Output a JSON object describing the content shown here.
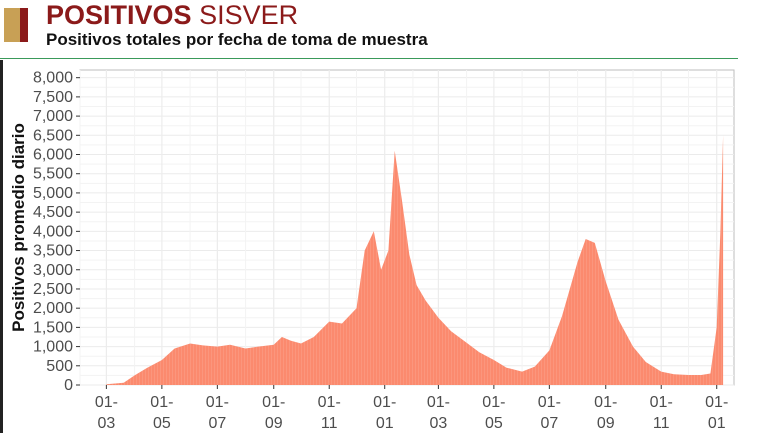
{
  "header": {
    "title_bold": "POSITIVOS",
    "title_light": "SISVER",
    "subtitle": "Positivos totales por fecha de toma de muestra"
  },
  "colors": {
    "title": "#8b1a1a",
    "gold": "#c8a055",
    "red": "#8b1a1a",
    "rule": "#3a9a5a",
    "area": "#fb8a6e",
    "area_light": "#fcae98",
    "grid": "#ebebeb"
  },
  "chart_data": {
    "type": "area",
    "title": "",
    "xlabel": "",
    "ylabel": "Positivos promedio diario",
    "ylim": [
      0,
      8200
    ],
    "yticks": [
      0,
      500,
      1000,
      1500,
      2000,
      2500,
      3000,
      3500,
      4000,
      4500,
      5000,
      5500,
      6000,
      6500,
      7000,
      7500,
      8000
    ],
    "ytick_labels": [
      "0",
      "500",
      "1,000",
      "1,500",
      "2,000",
      "2,500",
      "3,000",
      "3,500",
      "4,000",
      "4,500",
      "5,000",
      "5,500",
      "6,000",
      "6,500",
      "7,000",
      "7,500",
      "8,000"
    ],
    "xlim": [
      "2020-02-01",
      "2022-01-20"
    ],
    "xticks": [
      "2020-03-01",
      "2020-05-01",
      "2020-07-01",
      "2020-09-01",
      "2020-11-01",
      "2021-01-01",
      "2021-03-01",
      "2021-05-01",
      "2021-07-01",
      "2021-09-01",
      "2021-11-01",
      "2022-01-01"
    ],
    "xtick_labels": [
      [
        "01-",
        "03"
      ],
      [
        "01-",
        "05"
      ],
      [
        "01-",
        "07"
      ],
      [
        "01-",
        "09"
      ],
      [
        "01-",
        "11"
      ],
      [
        "01-",
        "01"
      ],
      [
        "01-",
        "03"
      ],
      [
        "01-",
        "05"
      ],
      [
        "01-",
        "07"
      ],
      [
        "01-",
        "09"
      ],
      [
        "01-",
        "11"
      ],
      [
        "01-",
        "01"
      ]
    ],
    "grid": true,
    "legend": "none",
    "x": [
      "2020-03-01",
      "2020-03-20",
      "2020-04-01",
      "2020-04-15",
      "2020-05-01",
      "2020-05-15",
      "2020-06-01",
      "2020-06-15",
      "2020-07-01",
      "2020-07-15",
      "2020-08-01",
      "2020-08-15",
      "2020-09-01",
      "2020-09-10",
      "2020-09-20",
      "2020-10-01",
      "2020-10-15",
      "2020-11-01",
      "2020-11-15",
      "2020-12-01",
      "2020-12-10",
      "2020-12-20",
      "2020-12-28",
      "2021-01-05",
      "2021-01-12",
      "2021-01-20",
      "2021-01-28",
      "2021-02-05",
      "2021-02-15",
      "2021-03-01",
      "2021-03-15",
      "2021-04-01",
      "2021-04-15",
      "2021-05-01",
      "2021-05-15",
      "2021-06-01",
      "2021-06-15",
      "2021-07-01",
      "2021-07-15",
      "2021-08-01",
      "2021-08-10",
      "2021-08-20",
      "2021-09-01",
      "2021-09-15",
      "2021-10-01",
      "2021-10-15",
      "2021-11-01",
      "2021-11-15",
      "2021-12-01",
      "2021-12-15",
      "2021-12-25",
      "2022-01-01",
      "2022-01-05",
      "2022-01-08"
    ],
    "y": [
      20,
      60,
      250,
      450,
      650,
      950,
      1080,
      1030,
      1000,
      1050,
      950,
      1000,
      1050,
      1250,
      1150,
      1080,
      1250,
      1650,
      1600,
      2000,
      3500,
      4000,
      3000,
      3500,
      6100,
      4800,
      3400,
      2600,
      2200,
      1750,
      1400,
      1100,
      850,
      650,
      450,
      350,
      480,
      900,
      1800,
      3200,
      3800,
      3700,
      2700,
      1700,
      1000,
      600,
      350,
      280,
      260,
      260,
      300,
      1500,
      4000,
      6500
    ]
  }
}
